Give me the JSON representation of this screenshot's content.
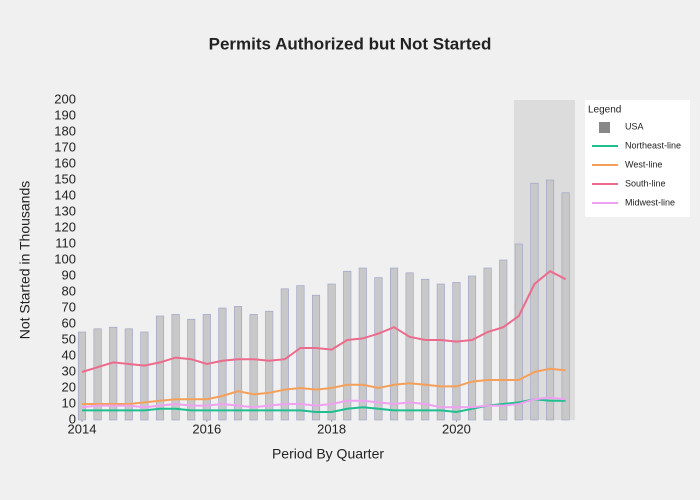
{
  "chart_data": {
    "type": "combo",
    "title": "Permits Authorized but Not Started",
    "x_label": "Period By Quarter",
    "y_label": "Not Started in Thousands",
    "legend_title": "Legend",
    "legend_position": "right",
    "xlim": [
      2014,
      2021.9
    ],
    "xticks": [
      2014,
      2016,
      2018,
      2020
    ],
    "ylim": [
      0,
      200
    ],
    "yticks": [
      0,
      10,
      20,
      30,
      40,
      50,
      60,
      70,
      80,
      90,
      100,
      110,
      120,
      130,
      140,
      150,
      160,
      170,
      180,
      190,
      200
    ],
    "highlight_range": [
      2020.92,
      2021.9
    ],
    "highlight_color": "#dcdcdc",
    "x": [
      2014,
      2014.25,
      2014.5,
      2014.75,
      2015,
      2015.25,
      2015.5,
      2015.75,
      2016,
      2016.25,
      2016.5,
      2016.75,
      2017,
      2017.25,
      2017.5,
      2017.75,
      2018,
      2018.25,
      2018.5,
      2018.75,
      2019,
      2019.25,
      2019.5,
      2019.75,
      2020,
      2020.25,
      2020.5,
      2020.75,
      2021,
      2021.25,
      2021.5,
      2021.75
    ],
    "series": [
      {
        "name": "USA",
        "type": "bar",
        "color": "#c8c8c8",
        "values": [
          55,
          57,
          58,
          57,
          55,
          65,
          66,
          63,
          66,
          70,
          71,
          66,
          68,
          82,
          84,
          78,
          85,
          93,
          95,
          89,
          95,
          92,
          88,
          85,
          86,
          90,
          95,
          100,
          110,
          148,
          150,
          142
        ]
      },
      {
        "name": "Northeast-line",
        "type": "line",
        "color": "#1fbf8f",
        "values": [
          6,
          6,
          6,
          6,
          6,
          7,
          7,
          6,
          6,
          6,
          6,
          6,
          6,
          6,
          6,
          5,
          5,
          7,
          8,
          7,
          6,
          6,
          6,
          6,
          5,
          7,
          9,
          10,
          11,
          13,
          12,
          12
        ]
      },
      {
        "name": "West-line",
        "type": "line",
        "color": "#f5a05a",
        "values": [
          10,
          10,
          10,
          10,
          11,
          12,
          13,
          13,
          13,
          15,
          18,
          16,
          17,
          19,
          20,
          19,
          20,
          22,
          22,
          20,
          22,
          23,
          22,
          21,
          21,
          24,
          25,
          25,
          25,
          30,
          32,
          31
        ]
      },
      {
        "name": "South-line",
        "type": "line",
        "color": "#ec6b8c",
        "values": [
          30,
          33,
          36,
          35,
          34,
          36,
          39,
          38,
          35,
          37,
          38,
          38,
          37,
          38,
          45,
          45,
          44,
          50,
          51,
          54,
          58,
          52,
          50,
          50,
          49,
          50,
          55,
          58,
          65,
          85,
          93,
          88
        ]
      },
      {
        "name": "Midwest-line",
        "type": "line",
        "color": "#f0a0f0",
        "values": [
          8,
          9,
          9,
          9,
          8,
          9,
          10,
          9,
          9,
          10,
          9,
          8,
          9,
          10,
          10,
          9,
          10,
          12,
          12,
          11,
          10,
          11,
          10,
          8,
          8,
          8,
          9,
          9,
          10,
          13,
          14,
          13
        ]
      }
    ]
  }
}
